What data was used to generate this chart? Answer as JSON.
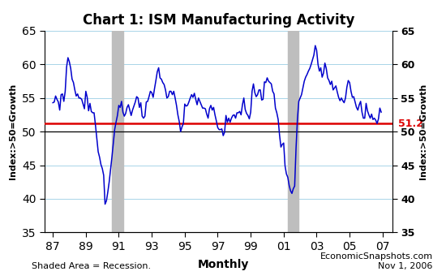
{
  "title": "Chart 1: ISM Manufacturing Activity",
  "ylabel_left": "Index:>50=Growth",
  "ylabel_right": "Index:>50=Growth",
  "ylim": [
    35,
    65
  ],
  "yticks": [
    35,
    40,
    45,
    50,
    55,
    60,
    65
  ],
  "xlim_start": 1986.5,
  "xlim_end": 2007.6,
  "xtick_labels": [
    "87",
    "89",
    "91",
    "93",
    "95",
    "97",
    "99",
    "01",
    "03",
    "05",
    "07"
  ],
  "xtick_values": [
    1987,
    1989,
    1991,
    1993,
    1995,
    1997,
    1999,
    2001,
    2003,
    2005,
    2007
  ],
  "mean_line": 51.2,
  "mean_line_color": "#dd0000",
  "mean_label_color": "#dd0000",
  "line_color": "#0000cc",
  "line_width": 1.1,
  "recession_bands": [
    {
      "start": 1990.583,
      "end": 1991.25
    },
    {
      "start": 2001.25,
      "end": 2001.917
    }
  ],
  "recession_color": "#bebebe",
  "recession_alpha": 1.0,
  "footer_left": "Shaded Area = Recession.",
  "footer_center": "Monthly",
  "footer_right": "EconomicSnapshots.com\nNov 1, 2006",
  "background_color": "#ffffff",
  "grid_color": "#a8d4e8",
  "ism_data": [
    54.3,
    54.4,
    55.3,
    54.8,
    54.4,
    53.2,
    55.5,
    55.6,
    54.5,
    56.0,
    59.6,
    61.0,
    60.4,
    59.4,
    57.8,
    57.3,
    56.2,
    55.3,
    55.6,
    55.0,
    55.0,
    54.8,
    54.1,
    53.4,
    56.0,
    55.1,
    53.1,
    54.2,
    53.0,
    52.8,
    52.8,
    51.0,
    49.0,
    47.0,
    46.2,
    45.1,
    44.5,
    43.5,
    39.2,
    39.7,
    41.0,
    42.5,
    44.3,
    46.2,
    48.3,
    50.3,
    51.4,
    52.4,
    53.9,
    53.6,
    54.5,
    52.9,
    52.3,
    52.7,
    53.6,
    54.0,
    53.2,
    52.4,
    53.2,
    53.8,
    54.4,
    55.2,
    55.0,
    53.6,
    54.3,
    52.3,
    52.0,
    52.3,
    54.4,
    54.5,
    55.2,
    56.0,
    55.8,
    55.1,
    56.4,
    57.6,
    58.9,
    59.5,
    58.0,
    57.8,
    57.3,
    57.0,
    56.2,
    55.0,
    55.2,
    56.0,
    56.0,
    55.5,
    56.0,
    55.0,
    53.9,
    52.5,
    51.5,
    50.0,
    50.7,
    51.2,
    54.1,
    53.8,
    53.9,
    54.4,
    55.0,
    55.5,
    55.1,
    55.7,
    54.8,
    54.0,
    55.0,
    54.5,
    54.0,
    53.5,
    53.5,
    53.4,
    52.6,
    52.0,
    53.4,
    53.9,
    53.2,
    53.6,
    52.5,
    51.6,
    50.6,
    50.3,
    50.3,
    50.4,
    49.4,
    49.9,
    52.4,
    51.4,
    52.0,
    51.4,
    52.0,
    52.4,
    52.5,
    52.0,
    52.8,
    52.8,
    53.0,
    52.5,
    54.0,
    55.0,
    53.3,
    52.7,
    52.4,
    51.9,
    52.9,
    56.0,
    57.1,
    55.8,
    55.2,
    55.5,
    56.2,
    56.2,
    54.7,
    54.8,
    57.4,
    57.3,
    58.0,
    57.5,
    57.3,
    57.1,
    56.0,
    55.6,
    53.5,
    52.8,
    51.8,
    49.5,
    47.7,
    48.1,
    48.3,
    44.9,
    43.7,
    43.2,
    42.0,
    41.2,
    40.8,
    41.5,
    41.9,
    47.5,
    51.8,
    54.5,
    55.0,
    55.5,
    56.5,
    57.5,
    58.1,
    58.5,
    59.0,
    59.4,
    60.0,
    60.7,
    61.4,
    62.8,
    62.1,
    60.0,
    59.0,
    59.5,
    58.1,
    58.7,
    60.2,
    59.4,
    58.0,
    57.6,
    57.0,
    57.5,
    56.2,
    56.5,
    56.8,
    55.9,
    55.1,
    54.6,
    55.0,
    54.6,
    54.3,
    55.0,
    56.6,
    57.6,
    57.3,
    56.0,
    55.1,
    55.2,
    54.4,
    53.6,
    53.2,
    54.0,
    54.5,
    52.9,
    52.0,
    52.0,
    54.2,
    53.1,
    52.5,
    52.0,
    52.6,
    51.8,
    52.0,
    51.7,
    51.2,
    51.9,
    53.5,
    52.9
  ]
}
